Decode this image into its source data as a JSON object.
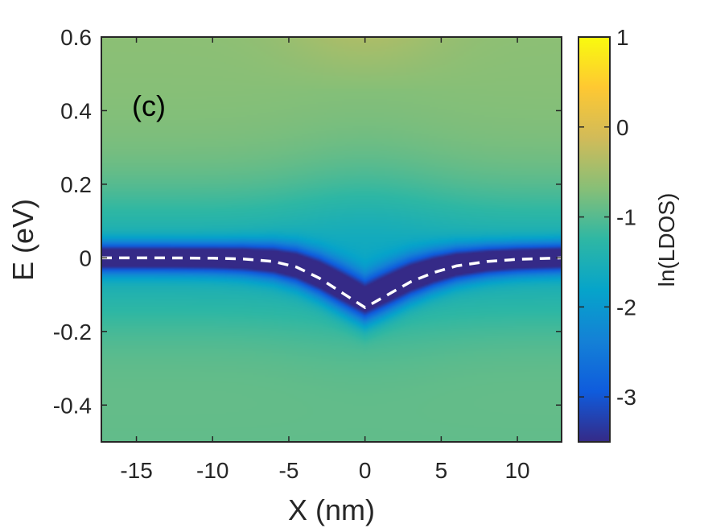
{
  "chart_data": {
    "type": "heatmap",
    "panel_label": "(c)",
    "xlabel": "X (nm)",
    "ylabel": "E (eV)",
    "xlim": [
      -17.3,
      12.9
    ],
    "ylim": [
      -0.5,
      0.6
    ],
    "xticks": [
      -15,
      -10,
      -5,
      0,
      5,
      10
    ],
    "xtick_labels": [
      "-15",
      "-10",
      "-5",
      "0",
      "5",
      "10"
    ],
    "yticks": [
      -0.4,
      -0.2,
      0,
      0.2,
      0.4,
      0.6
    ],
    "ytick_labels": [
      "-0.4",
      "-0.2",
      "0",
      "0.2",
      "0.4",
      "0.6"
    ],
    "colorbar": {
      "label": "ln(LDOS)",
      "range": [
        -3.5,
        1
      ],
      "ticks": [
        -3,
        -2,
        -1,
        0,
        1
      ],
      "tick_labels": [
        "-3",
        "-2",
        "-1",
        "0",
        "1"
      ],
      "colormap": "parula",
      "colormap_stops": [
        "#352a87",
        "#0f5cdd",
        "#1481d6",
        "#06a4ca",
        "#2eb7a4",
        "#87bf77",
        "#d1bb59",
        "#fec832",
        "#f9fb0e"
      ]
    },
    "heatmap_description": "Low LDOS (ln ~ -3.5) band along E = 0 that dips to about -0.13 eV near X = 0; background ln(LDOS) ~ -0.8 to -0.6 away from the band",
    "dashed_curve": {
      "color": "#ffffff",
      "style": "dashed",
      "x": [
        -17.3,
        -13,
        -10,
        -8,
        -6,
        -4.5,
        -3,
        -1.5,
        0,
        1.5,
        3,
        4.5,
        6,
        8,
        10,
        12.9
      ],
      "y": [
        0.0,
        0.0,
        -0.001,
        -0.003,
        -0.01,
        -0.025,
        -0.055,
        -0.095,
        -0.135,
        -0.1,
        -0.065,
        -0.04,
        -0.022,
        -0.01,
        -0.004,
        0.0
      ]
    }
  }
}
